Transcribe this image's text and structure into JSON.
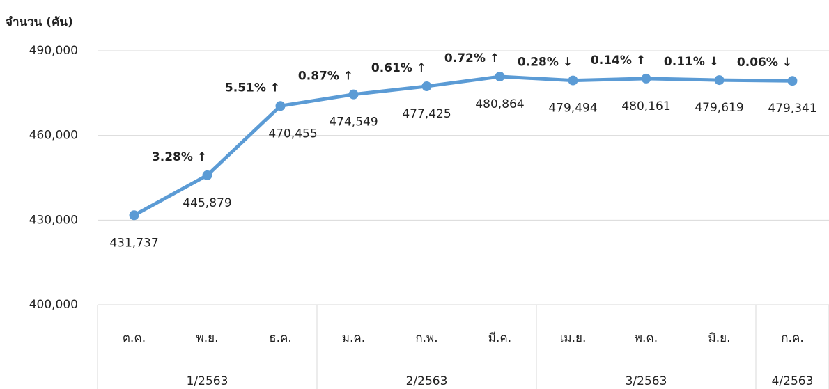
{
  "chart_data": {
    "type": "line",
    "y_axis_label": "จำนวน (คัน)",
    "categories": [
      "ต.ค.",
      "พ.ย.",
      "ธ.ค.",
      "ม.ค.",
      "ก.พ.",
      "มี.ค.",
      "เม.ย.",
      "พ.ค.",
      "มิ.ย.",
      "ก.ค."
    ],
    "groups": [
      {
        "name": "1/2563",
        "span": 3
      },
      {
        "name": "2/2563",
        "span": 3
      },
      {
        "name": "3/2563",
        "span": 3
      },
      {
        "name": "4/2563",
        "span": 1
      }
    ],
    "series": [
      {
        "name": "จำนวน",
        "color": "#5b9bd5",
        "values": [
          431737,
          445879,
          470455,
          474549,
          477425,
          480864,
          479494,
          480161,
          479619,
          479341
        ],
        "value_labels": [
          "431,737",
          "445,879",
          "470,455",
          "474,549",
          "477,425",
          "480,864",
          "479,494",
          "480,161",
          "479,619",
          "479,341"
        ]
      }
    ],
    "annotations": [
      null,
      {
        "text": "3.28% ↑",
        "color": "#00b050"
      },
      {
        "text": "5.51% ↑",
        "color": "#00b050"
      },
      {
        "text": "0.87% ↑",
        "color": "#00b050"
      },
      {
        "text": "0.61% ↑",
        "color": "#00b050"
      },
      {
        "text": "0.72% ↑",
        "color": "#00b050"
      },
      {
        "text": "0.28% ↓",
        "color": "#ff0000"
      },
      {
        "text": "0.14% ↑",
        "color": "#00b050"
      },
      {
        "text": "0.11% ↓",
        "color": "#ff0000"
      },
      {
        "text": "0.06% ↓",
        "color": "#ff0000"
      }
    ],
    "ylim": [
      400000,
      490000
    ],
    "yticks": [
      {
        "value": 400000,
        "label": "400,000"
      },
      {
        "value": 430000,
        "label": "430,000"
      },
      {
        "value": 460000,
        "label": "460,000"
      },
      {
        "value": 490000,
        "label": "490,000"
      }
    ],
    "grid": true
  }
}
